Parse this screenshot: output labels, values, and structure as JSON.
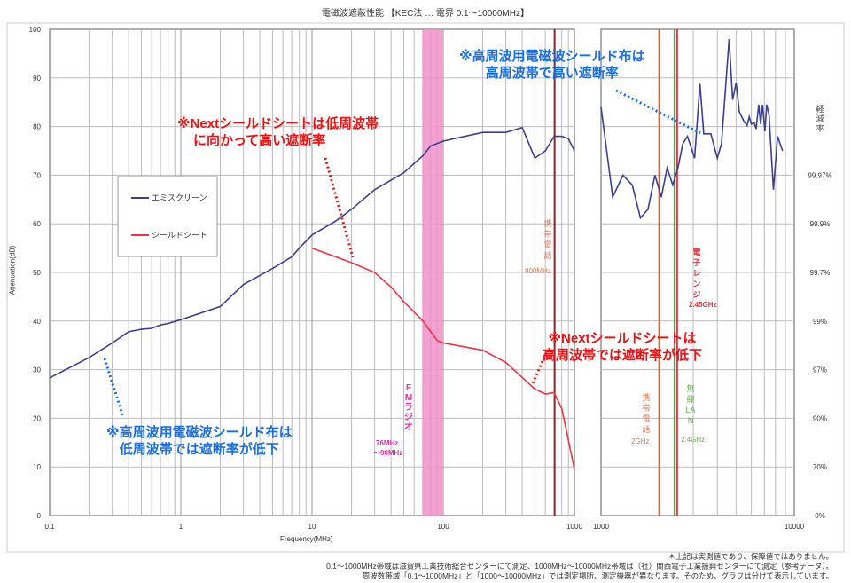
{
  "title": "電磁波遮蔽性能 【KEC法 … 電界 0.1〜10000MHz】",
  "chart_data": [
    {
      "type": "line",
      "title": "電磁波遮蔽性能 【KEC法 … 電界 0.1〜10000MHz】",
      "xlabel": "Frequency(MHz)",
      "ylabel": "Attenuation(dB)",
      "xscale": "log",
      "xlim": [
        0.1,
        1000
      ],
      "ylim": [
        0,
        100
      ],
      "x_ticks": [
        "0.1",
        "1",
        "10",
        "100",
        "1000"
      ],
      "y_ticks": [
        0,
        10,
        20,
        30,
        40,
        50,
        60,
        70,
        80,
        90,
        100
      ],
      "grid": true,
      "legend": {
        "position": "inside-left",
        "entries": [
          "エミスクリーン",
          "シールドシート"
        ]
      },
      "series": [
        {
          "name": "エミスクリーン",
          "color": "#3b3f8f",
          "points": [
            [
              0.1,
              28.3
            ],
            [
              0.2,
              32.5
            ],
            [
              0.3,
              35.5
            ],
            [
              0.4,
              37.8
            ],
            [
              0.5,
              38.3
            ],
            [
              0.6,
              38.5
            ],
            [
              0.7,
              39.2
            ],
            [
              0.8,
              39.5
            ],
            [
              1,
              40.3
            ],
            [
              2,
              43
            ],
            [
              3,
              47.5
            ],
            [
              5,
              50.8
            ],
            [
              7,
              53.2
            ],
            [
              8,
              55
            ],
            [
              10,
              57.7
            ],
            [
              15,
              60.5
            ],
            [
              20,
              63
            ],
            [
              30,
              67
            ],
            [
              50,
              70.5
            ],
            [
              70,
              74
            ],
            [
              80,
              76
            ],
            [
              100,
              77
            ],
            [
              200,
              78.8
            ],
            [
              300,
              78.8
            ],
            [
              400,
              79.8
            ],
            [
              500,
              73.5
            ],
            [
              600,
              75
            ],
            [
              700,
              78
            ],
            [
              800,
              78
            ],
            [
              900,
              77.5
            ],
            [
              1000,
              75
            ]
          ]
        },
        {
          "name": "シールドシート",
          "color": "#ee3344",
          "points": [
            [
              10,
              55
            ],
            [
              20,
              52
            ],
            [
              30,
              50
            ],
            [
              40,
              47
            ],
            [
              50,
              44
            ],
            [
              70,
              40
            ],
            [
              90,
              36
            ],
            [
              100,
              35.5
            ],
            [
              200,
              34
            ],
            [
              300,
              31.5
            ],
            [
              500,
              26
            ],
            [
              600,
              25
            ],
            [
              700,
              25.3
            ],
            [
              800,
              22
            ],
            [
              900,
              15.5
            ],
            [
              1000,
              9.5
            ]
          ]
        }
      ],
      "bands": [
        {
          "label": "FMラジオ",
          "range_label": "76MHz〜90MHz",
          "from": 76,
          "to": 90,
          "color": "#f090c8"
        }
      ],
      "markers": [
        {
          "label": "携帯電話",
          "freq_label": "800MHz",
          "x": 800,
          "color": "#8b2a2a"
        }
      ]
    },
    {
      "type": "line",
      "xscale": "log",
      "xlim": [
        1000,
        10000
      ],
      "ylim": [
        0,
        100
      ],
      "x_ticks": [
        "1000",
        "10000"
      ],
      "right_axis_label": "軽減率",
      "right_ticks": [
        {
          "label": "99.97%",
          "y": 70
        },
        {
          "label": "99.9%",
          "y": 60
        },
        {
          "label": "99.7%",
          "y": 50
        },
        {
          "label": "99%",
          "y": 40
        },
        {
          "label": "97%",
          "y": 30
        },
        {
          "label": "90%",
          "y": 20
        },
        {
          "label": "70%",
          "y": 10
        },
        {
          "label": "0%",
          "y": 0
        }
      ],
      "series": [
        {
          "name": "エミスクリーン",
          "color": "#3b3f8f",
          "points": [
            [
              1000,
              84
            ],
            [
              1150,
              65.5
            ],
            [
              1300,
              70
            ],
            [
              1450,
              68
            ],
            [
              1600,
              61.2
            ],
            [
              1750,
              63
            ],
            [
              1900,
              70
            ],
            [
              2050,
              65.5
            ],
            [
              2200,
              71.5
            ],
            [
              2350,
              68
            ],
            [
              2500,
              71.5
            ],
            [
              2650,
              76.5
            ],
            [
              2800,
              78
            ],
            [
              3050,
              73.5
            ],
            [
              3250,
              88.8
            ],
            [
              3400,
              78.5
            ],
            [
              3700,
              78.5
            ],
            [
              4000,
              73.5
            ],
            [
              4200,
              76.5
            ],
            [
              4600,
              98
            ],
            [
              4800,
              85.5
            ],
            [
              5000,
              89
            ],
            [
              5200,
              83
            ],
            [
              5500,
              81
            ],
            [
              5700,
              80.2
            ],
            [
              5850,
              82
            ],
            [
              6000,
              80.5
            ],
            [
              6200,
              80.8
            ],
            [
              6350,
              79.5
            ],
            [
              6550,
              84.5
            ],
            [
              6700,
              80.5
            ],
            [
              6850,
              84.5
            ],
            [
              7050,
              79
            ],
            [
              7200,
              84.5
            ],
            [
              7400,
              82.5
            ],
            [
              7800,
              67
            ],
            [
              8200,
              78
            ],
            [
              8700,
              75
            ]
          ]
        }
      ],
      "markers": [
        {
          "label": "携帯電話",
          "freq_label": "2GHz",
          "x": 2000,
          "color": "#e06030"
        },
        {
          "label": "無線LAN",
          "freq_label": "2.4GHz",
          "x": 2400,
          "color": "#5aa050"
        },
        {
          "label": "電子レンジ",
          "freq_label": "2.45GHz",
          "x": 2450,
          "color": "#e83040"
        }
      ]
    }
  ],
  "legend": {
    "items": [
      {
        "label": "エミスクリーン",
        "color": "#3b3f8f"
      },
      {
        "label": "シールドシート",
        "color": "#ee3344"
      }
    ]
  },
  "axes": {
    "ylabel": "Attenuation(dB)",
    "xlabel": "Frequency(MHz)",
    "right_title": "軽減率"
  },
  "labels": {
    "fm_band": "FMラジオ",
    "fm_range_1": "76MHz",
    "fm_range_2": "〜90MHz",
    "mobile_800": "携帯電話",
    "mobile_800_freq": "800MHz",
    "mobile_2g": "携帯電話",
    "mobile_2g_freq": "2GHz",
    "wlan": "無線LAN",
    "wlan_freq": "2.4GHz",
    "microwave": "電子レンジ",
    "microwave_freq": "2.45GHz"
  },
  "annotations": {
    "next_low_1": "※Nextシールドシートは低周波帯",
    "next_low_2": "に向かって高い遮断率",
    "cloth_high_1": "※高周波用電磁波シールド布は",
    "cloth_high_2": "高周波帯で高い遮断率",
    "next_high_1": "※Nextシールドシートは",
    "next_high_2": "高周波帯では遮断率が低下",
    "cloth_low_1": "※高周波用電磁波シールド布は",
    "cloth_low_2": "低周波帯では遮断率が低下"
  },
  "footnotes": [
    "＊上記は実測値であり、保障値ではありません。",
    "0.1〜1000MHz帯域は滋賀県工業技術総合センターにて測定、1000MHz〜10000MHz帯域は（社）関西電子工業振興センターにて測定（参考データ）。",
    "周波数帯域「0.1〜1000MHz」と「1000〜10000MHz」では測定場所、測定機器が異なります。そのため、グラフは分けて表示しています。"
  ]
}
